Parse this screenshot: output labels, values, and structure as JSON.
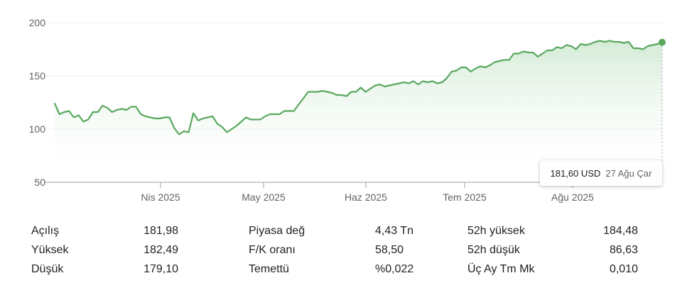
{
  "chart_data": {
    "type": "area",
    "ylim": [
      50,
      200
    ],
    "y_ticks": [
      "200",
      "150",
      "100",
      "50"
    ],
    "x_ticks": [
      "Nis 2025",
      "May 2025",
      "Haz 2025",
      "Tem 2025",
      "Ağu 2025"
    ],
    "line_color": "#5aa85f",
    "fill_color": "#e6f4e8",
    "grid": true,
    "series": [
      {
        "values": [
          124,
          114,
          116,
          117,
          111,
          113,
          107,
          109,
          116,
          116,
          122,
          120,
          116,
          118,
          119,
          118,
          121,
          121,
          114,
          112,
          111,
          110,
          110,
          111,
          111,
          101,
          95,
          98,
          97,
          115,
          108,
          110,
          111,
          112,
          105,
          102,
          97,
          100,
          103,
          107,
          111,
          109,
          109,
          109,
          112,
          114,
          114,
          114,
          117,
          117,
          117,
          123,
          129,
          135,
          135,
          135,
          136,
          135,
          134,
          132,
          132,
          131,
          135,
          135,
          139,
          135,
          138,
          141,
          142,
          140,
          141,
          142,
          143,
          144,
          143,
          145,
          142,
          145,
          144,
          145,
          143,
          144,
          148,
          154,
          155,
          158,
          158,
          154,
          157,
          159,
          158,
          160,
          163,
          164,
          165,
          165,
          171,
          171,
          173,
          172,
          172,
          168,
          171,
          174,
          174,
          177,
          176,
          179,
          178,
          175,
          180,
          179,
          180,
          182,
          183,
          182,
          183,
          182,
          182,
          181,
          182,
          176,
          176,
          175,
          178,
          179,
          180,
          181.6
        ]
      }
    ]
  },
  "tooltip": {
    "value": "181,60 USD",
    "date": "27 Ağu Çar"
  },
  "stats": {
    "col1": [
      {
        "label": "Açılış",
        "value": "181,98"
      },
      {
        "label": "Yüksek",
        "value": "182,49"
      },
      {
        "label": "Düşük",
        "value": "179,10"
      }
    ],
    "col2": [
      {
        "label": "Piyasa değ",
        "value": "4,43 Tn"
      },
      {
        "label": "F/K oranı",
        "value": "58,50"
      },
      {
        "label": "Temettü",
        "value": "%0,022"
      }
    ],
    "col3": [
      {
        "label": "52h yüksek",
        "value": "184,48"
      },
      {
        "label": "52h düşük",
        "value": "86,63"
      },
      {
        "label": "Üç Ay Tm Mk",
        "value": "0,010"
      }
    ]
  }
}
